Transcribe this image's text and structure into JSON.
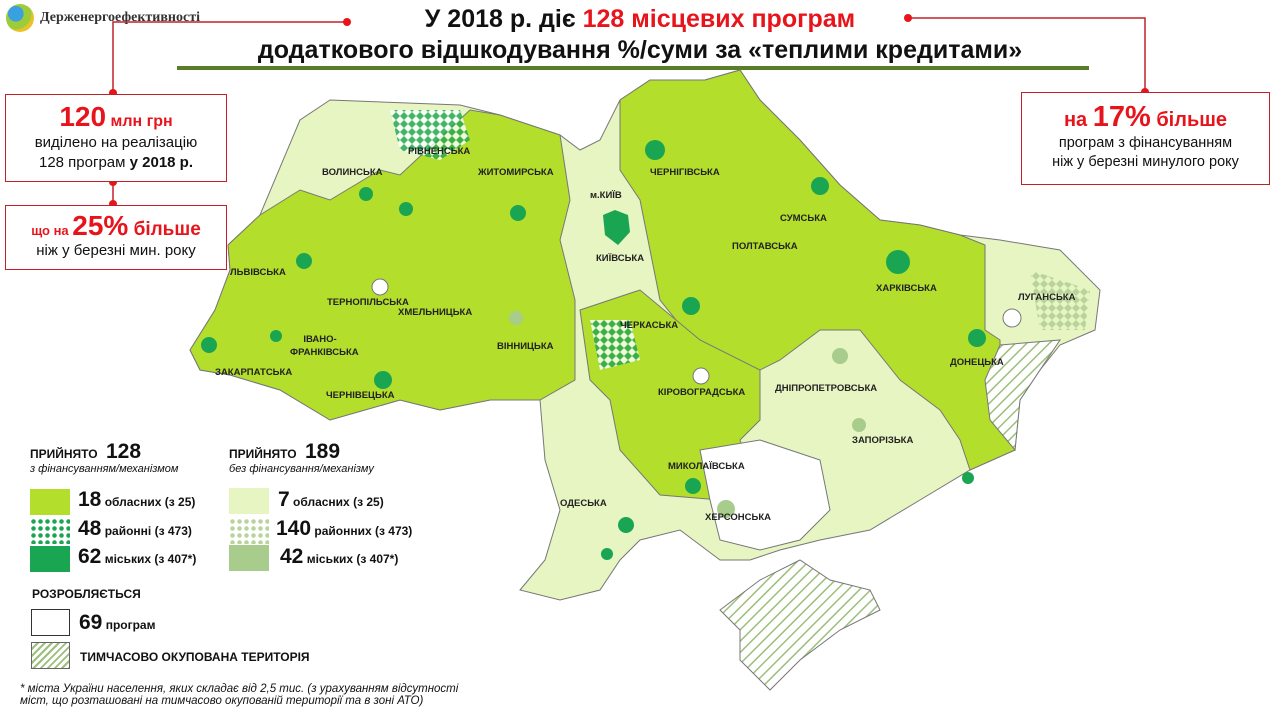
{
  "header": {
    "logo_text": "Держенергоефективності",
    "title_part1": "У 2018 р. діє ",
    "title_highlight": "128 місцевих програм",
    "title_line2": "додаткового відшкодування %/суми за «теплими кредитами»"
  },
  "left_box1": {
    "amount": "120",
    "unit": " млн грн",
    "line1": "виділено на реалізацію",
    "line2_plain": "128 програм ",
    "line2_bold": "у 2018 р."
  },
  "left_box2": {
    "prefix": "що на ",
    "percent": "25%",
    "suffix": " більше",
    "line2": "ніж у березні мин. року"
  },
  "right_box": {
    "prefix": "на ",
    "percent": "17%",
    "suffix": " більше",
    "line1": "програм з фінансуванням",
    "line2": "ніж у березні минулого року"
  },
  "map": {
    "colors": {
      "funded_oblast": "#b4de2c",
      "unfunded_oblast": "#e6f5c2",
      "funded_city": "#1aa552",
      "unfunded_city": "#a8cc8c",
      "developing": "#ffffff",
      "occupied_hatch": "#9cbf7a"
    },
    "regions": [
      "ВОЛИНСЬКА",
      "РІВНЕНСЬКА",
      "ЖИТОМИРСЬКА",
      "м.КИЇВ",
      "КИЇВСЬКА",
      "ЧЕРНІГІВСЬКА",
      "СУМСЬКА",
      "ПОЛТАВСЬКА",
      "ХАРКІВСЬКА",
      "ЛУГАНСЬКА",
      "ЛЬВІВСЬКА",
      "ТЕРНОПІЛЬСЬКА",
      "ХМЕЛЬНИЦЬКА",
      "ІВАНО-ФРАНКІВСЬКА",
      "ЗАКАРПАТСЬКА",
      "ЧЕРНІВЕЦЬКА",
      "ВІННИЦЬКА",
      "ЧЕРКАСЬКА",
      "КІРОВОГРАДСЬКА",
      "ДНІПРОПЕТРОВСЬКА",
      "ДОНЕЦЬКА",
      "ЗАПОРІЗЬКА",
      "МИКОЛАЇВСЬКА",
      "ОДЕСЬКА",
      "ХЕРСОНСЬКА"
    ]
  },
  "legend": {
    "funded": {
      "label": "прийнято",
      "count": "128",
      "sub": "з фінансуванням/механізмом",
      "items": [
        {
          "num": "18",
          "text": " обласних (з 25)"
        },
        {
          "num": "48",
          "text": " районні (з 473)"
        },
        {
          "num": "62",
          "text": " міських (з 407*)"
        }
      ]
    },
    "unfunded": {
      "label": "прийнято",
      "count": "189",
      "sub": "без фінансування/механізму",
      "items": [
        {
          "num": "7",
          "text": " обласних (з 25)"
        },
        {
          "num": "140",
          "text": " районних (з 473)"
        },
        {
          "num": "42",
          "text": " міських (з 407*)"
        }
      ]
    },
    "developing": {
      "label": "РОЗРОБЛЯЄТЬСЯ",
      "num": "69",
      "text": " програм"
    },
    "occupied": {
      "text": "ТИМЧАСОВО ОКУПОВАНА ТЕРИТОРІЯ"
    }
  },
  "footnote": {
    "line1": "* міста України населення, яких складає від 2,5 тис. (з урахуванням відсутності",
    "line2": "міст, що розташовані на тимчасово окупованій території та в зоні АТО)"
  }
}
